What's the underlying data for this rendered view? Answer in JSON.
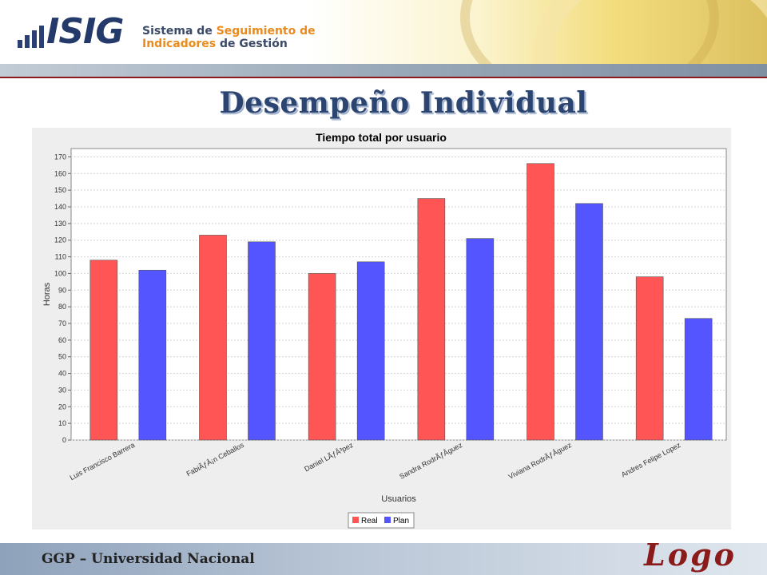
{
  "header": {
    "logo_brand": "ISIG",
    "logo_line1_a": "Sistema de ",
    "logo_line1_b": "Seguimiento de",
    "logo_line2_a": "Indicadores ",
    "logo_line2_b": "de Gestión"
  },
  "slide_title": "Desempeño Individual",
  "footer": {
    "text": "GGP – Universidad Nacional",
    "logo": "Logo"
  },
  "colors": {
    "real": "#ff5555",
    "plan": "#5555ff",
    "title": "#2b4470",
    "footer_logo": "#8b1a1a"
  },
  "chart_data": {
    "type": "bar",
    "title": "Tiempo total por usuario",
    "xlabel": "Usuarios",
    "ylabel": "Horas",
    "ylim": [
      0,
      175
    ],
    "yticks": [
      0,
      10,
      20,
      30,
      40,
      50,
      60,
      70,
      80,
      90,
      100,
      110,
      120,
      130,
      140,
      150,
      160,
      170
    ],
    "categories": [
      "Luis Francisco Barrera",
      "FabiÃƒÂ¡n Ceballos",
      "Daniel LÃƒÂ³pez",
      "Sandra RodrÃƒÂ­guez",
      "Viviana RodrÃƒÂ­guez",
      "Andres Felipe Lopez"
    ],
    "series": [
      {
        "name": "Real",
        "values": [
          108,
          123,
          100,
          145,
          166,
          98
        ]
      },
      {
        "name": "Plan",
        "values": [
          102,
          119,
          107,
          121,
          142,
          73
        ]
      }
    ],
    "legend": "bottom-center",
    "grid": true
  }
}
